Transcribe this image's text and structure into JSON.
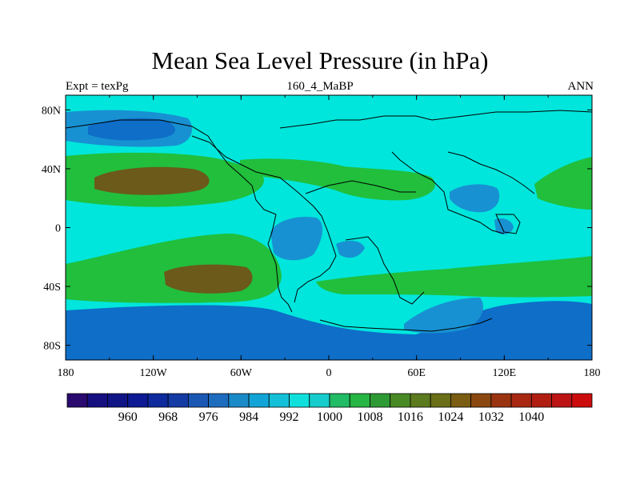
{
  "title": "Mean Sea Level Pressure (in hPa)",
  "subtitle_left": "Expt = texPg",
  "subtitle_center": "160_4_MaBP",
  "subtitle_right": "ANN",
  "map": {
    "projection": "cylindrical equidistant",
    "lon_range": [
      -180,
      180
    ],
    "lat_range": [
      -90,
      90
    ],
    "x_tick_labels": [
      "180",
      "120W",
      "60W",
      "0",
      "60E",
      "120E",
      "180"
    ],
    "y_tick_labels": [
      "80N",
      "40N",
      "0",
      "40S",
      "80S"
    ]
  },
  "colorbar": {
    "labels": [
      "960",
      "968",
      "976",
      "984",
      "992",
      "1000",
      "1008",
      "1016",
      "1024",
      "1032",
      "1040"
    ],
    "colors": [
      "#2a0a6e",
      "#150f80",
      "#101586",
      "#0d1a94",
      "#0e2a9c",
      "#143aa4",
      "#1b58b4",
      "#1e6cbe",
      "#1a8ac8",
      "#12a4d6",
      "#14c0d8",
      "#10e0dc",
      "#16cccc",
      "#22bb66",
      "#27b543",
      "#2e9a35",
      "#4a8a26",
      "#5c7a1e",
      "#6a6e16",
      "#7a5c12",
      "#8a4810",
      "#9a3410",
      "#a82812",
      "#b01e12",
      "#bc1414",
      "#cc0c0c"
    ]
  },
  "fields": {
    "background": "#00e6dc",
    "band_low": "#0e6ec8",
    "band_low2": "#1891d2",
    "band_mid": "#21bf3c",
    "band_high": "#6b5a1a",
    "coast": "#000000"
  }
}
